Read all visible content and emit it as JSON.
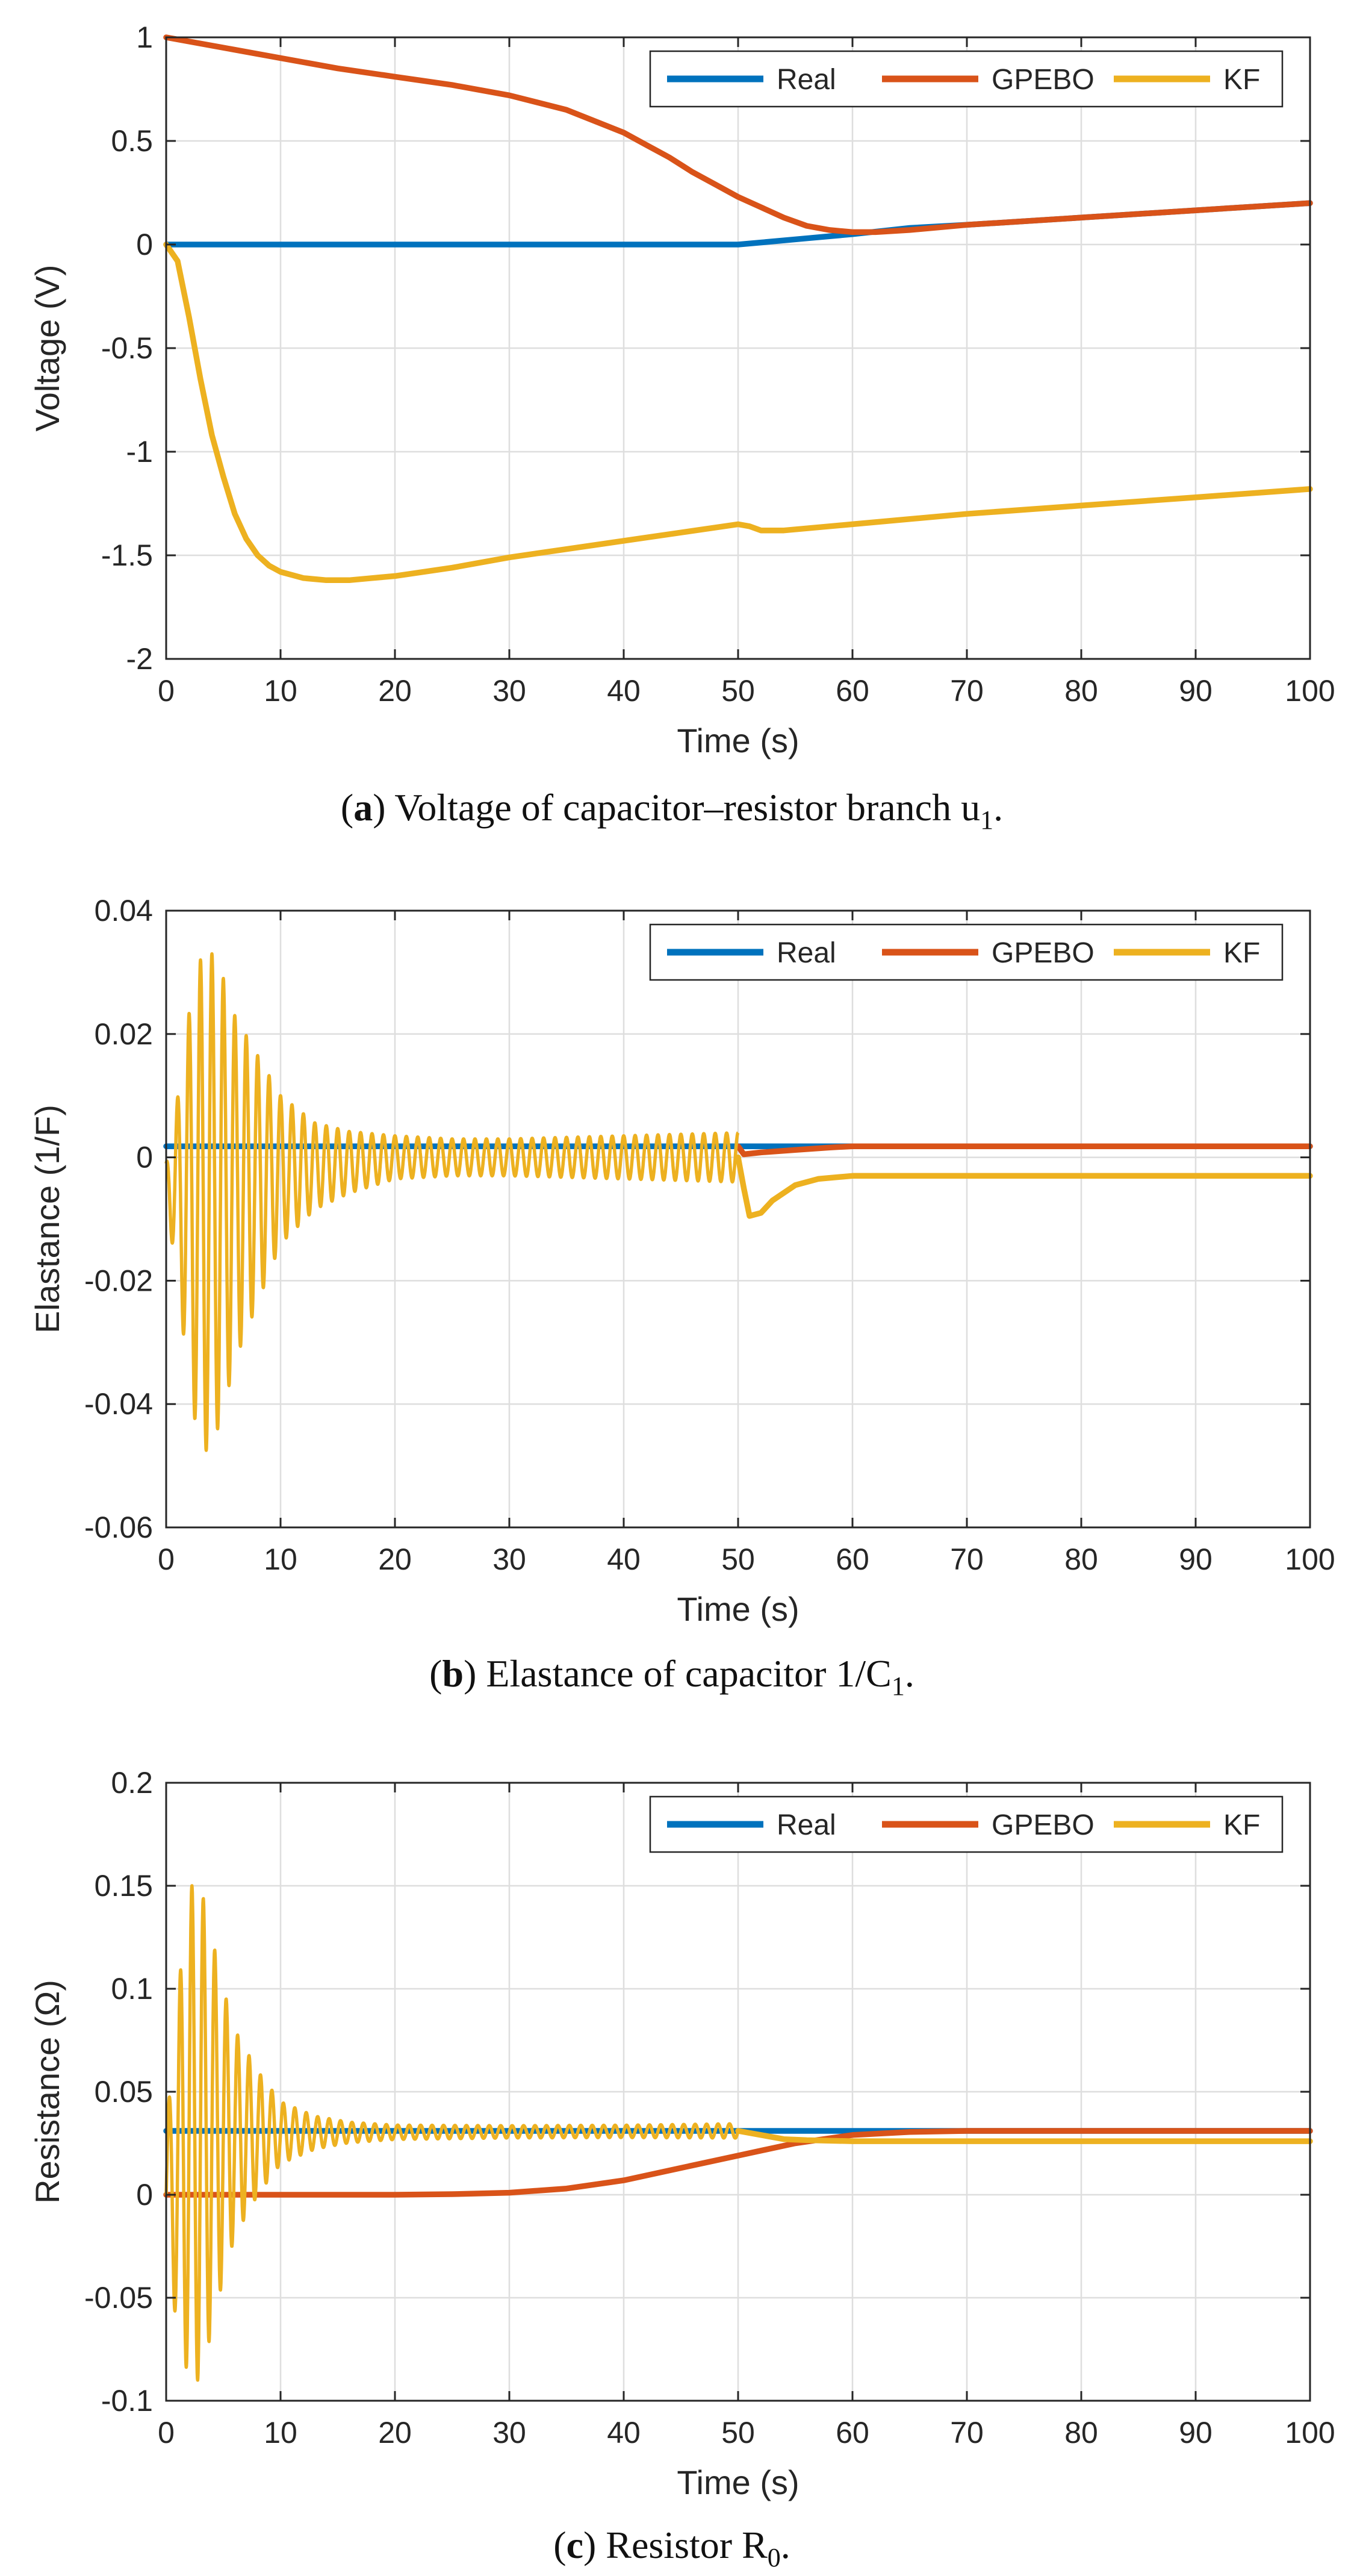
{
  "chart_data": [
    {
      "type": "line",
      "panel": "a",
      "title": "",
      "xlabel": "Time (s)",
      "ylabel": "Voltage (V)",
      "xlim": [
        0,
        100
      ],
      "ylim": [
        -2,
        1
      ],
      "xticks": [
        0,
        10,
        20,
        30,
        40,
        50,
        60,
        70,
        80,
        90,
        100
      ],
      "yticks": [
        -2,
        -1.5,
        -1,
        -0.5,
        0,
        0.5,
        1
      ],
      "ytick_labels": [
        "-2",
        "-1.5",
        "-1",
        "-0.5",
        "0",
        "0.5",
        "1"
      ],
      "grid": true,
      "legend_position": "top-right",
      "caption": {
        "bold": "a",
        "text": "Voltage of capacitor–resistor branch u",
        "subscript": "1",
        "suffix": "."
      },
      "series": [
        {
          "name": "Real",
          "color": "#0072BD",
          "points": [
            [
              0,
              0
            ],
            [
              50,
              0
            ],
            [
              52,
              0.01
            ],
            [
              56,
              0.03
            ],
            [
              60,
              0.05
            ],
            [
              65,
              0.08
            ],
            [
              70,
              0.095
            ],
            [
              80,
              0.13
            ],
            [
              90,
              0.165
            ],
            [
              100,
              0.2
            ]
          ]
        },
        {
          "name": "GPEBO",
          "color": "#D95319",
          "points": [
            [
              0,
              1
            ],
            [
              5,
              0.95
            ],
            [
              10,
              0.9
            ],
            [
              15,
              0.85
            ],
            [
              20,
              0.81
            ],
            [
              25,
              0.77
            ],
            [
              30,
              0.72
            ],
            [
              35,
              0.65
            ],
            [
              40,
              0.54
            ],
            [
              42,
              0.48
            ],
            [
              44,
              0.42
            ],
            [
              46,
              0.35
            ],
            [
              48,
              0.29
            ],
            [
              50,
              0.23
            ],
            [
              52,
              0.18
            ],
            [
              54,
              0.13
            ],
            [
              56,
              0.09
            ],
            [
              58,
              0.07
            ],
            [
              60,
              0.06
            ],
            [
              62,
              0.06
            ],
            [
              65,
              0.07
            ],
            [
              70,
              0.095
            ],
            [
              80,
              0.13
            ],
            [
              90,
              0.165
            ],
            [
              100,
              0.2
            ]
          ]
        },
        {
          "name": "KF",
          "color": "#EDB120",
          "points": [
            [
              0,
              0
            ],
            [
              1,
              -0.08
            ],
            [
              2,
              -0.35
            ],
            [
              3,
              -0.65
            ],
            [
              4,
              -0.92
            ],
            [
              5,
              -1.12
            ],
            [
              6,
              -1.3
            ],
            [
              7,
              -1.42
            ],
            [
              8,
              -1.5
            ],
            [
              9,
              -1.55
            ],
            [
              10,
              -1.58
            ],
            [
              12,
              -1.61
            ],
            [
              14,
              -1.62
            ],
            [
              16,
              -1.62
            ],
            [
              18,
              -1.61
            ],
            [
              20,
              -1.6
            ],
            [
              25,
              -1.56
            ],
            [
              30,
              -1.51
            ],
            [
              35,
              -1.47
            ],
            [
              40,
              -1.43
            ],
            [
              45,
              -1.39
            ],
            [
              50,
              -1.35
            ],
            [
              51,
              -1.36
            ],
            [
              52,
              -1.38
            ],
            [
              54,
              -1.38
            ],
            [
              58,
              -1.36
            ],
            [
              60,
              -1.35
            ],
            [
              70,
              -1.3
            ],
            [
              80,
              -1.26
            ],
            [
              90,
              -1.22
            ],
            [
              100,
              -1.18
            ]
          ]
        }
      ]
    },
    {
      "type": "line",
      "panel": "b",
      "title": "",
      "xlabel": "Time (s)",
      "ylabel": "Elastance (1/F)",
      "xlim": [
        0,
        100
      ],
      "ylim": [
        -0.06,
        0.04
      ],
      "xticks": [
        0,
        10,
        20,
        30,
        40,
        50,
        60,
        70,
        80,
        90,
        100
      ],
      "yticks": [
        -0.06,
        -0.04,
        -0.02,
        0,
        0.02,
        0.04
      ],
      "ytick_labels": [
        "-0.06",
        "-0.04",
        "-0.02",
        "0",
        "0.02",
        "0.04"
      ],
      "grid": true,
      "legend_position": "top-right",
      "caption": {
        "bold": "b",
        "text": "Elastance of capacitor 1/C",
        "subscript": "1",
        "suffix": "."
      },
      "series": [
        {
          "name": "Real",
          "color": "#0072BD",
          "points": [
            [
              0,
              0.0018
            ],
            [
              100,
              0.0018
            ]
          ]
        },
        {
          "name": "GPEBO",
          "color": "#D95319",
          "points": [
            [
              50,
              0.0018
            ],
            [
              50.5,
              0.0005
            ],
            [
              52,
              0.0008
            ],
            [
              55,
              0.0012
            ],
            [
              58,
              0.0016
            ],
            [
              60,
              0.0018
            ],
            [
              100,
              0.0018
            ]
          ]
        },
        {
          "name": "KF",
          "color": "#EDB120",
          "oscillation": {
            "t_end": 50,
            "period": 1.0,
            "phase": 0.25,
            "envelope": [
              [
                0,
                0.003
              ],
              [
                1,
                0.015
              ],
              [
                2,
                0.03
              ],
              [
                3,
                0.04
              ],
              [
                4,
                0.04
              ],
              [
                5,
                0.035
              ],
              [
                6,
                0.028
              ],
              [
                8,
                0.02
              ],
              [
                10,
                0.012
              ],
              [
                13,
                0.007
              ],
              [
                16,
                0.005
              ],
              [
                20,
                0.0035
              ],
              [
                25,
                0.003
              ],
              [
                30,
                0.003
              ],
              [
                40,
                0.0035
              ],
              [
                50,
                0.004
              ]
            ],
            "center": [
              [
                0,
                -0.004
              ],
              [
                3,
                -0.008
              ],
              [
                6,
                -0.005
              ],
              [
                10,
                -0.002
              ],
              [
                20,
                0.0
              ],
              [
                50,
                0.0
              ]
            ]
          },
          "points": [
            [
              50,
              0.0
            ],
            [
              50.5,
              -0.005
            ],
            [
              51,
              -0.0095
            ],
            [
              52,
              -0.009
            ],
            [
              53,
              -0.007
            ],
            [
              55,
              -0.0045
            ],
            [
              57,
              -0.0035
            ],
            [
              60,
              -0.003
            ],
            [
              100,
              -0.003
            ]
          ]
        }
      ]
    },
    {
      "type": "line",
      "panel": "c",
      "title": "",
      "xlabel": "Time (s)",
      "ylabel": "Resistance (Ω)",
      "xlim": [
        0,
        100
      ],
      "ylim": [
        -0.1,
        0.2
      ],
      "xticks": [
        0,
        10,
        20,
        30,
        40,
        50,
        60,
        70,
        80,
        90,
        100
      ],
      "yticks": [
        -0.1,
        -0.05,
        0,
        0.05,
        0.1,
        0.15,
        0.2
      ],
      "ytick_labels": [
        "-0.1",
        "-0.05",
        "0",
        "0.05",
        "0.1",
        "0.15",
        "0.2"
      ],
      "grid": true,
      "legend_position": "top-right",
      "caption": {
        "bold": "c",
        "text": "Resistor R",
        "subscript": "0",
        "suffix": "."
      },
      "series": [
        {
          "name": "Real",
          "color": "#0072BD",
          "points": [
            [
              0,
              0.031
            ],
            [
              100,
              0.031
            ]
          ]
        },
        {
          "name": "GPEBO",
          "color": "#D95319",
          "points": [
            [
              0,
              0
            ],
            [
              20,
              0
            ],
            [
              25,
              0.0003
            ],
            [
              30,
              0.001
            ],
            [
              35,
              0.003
            ],
            [
              40,
              0.007
            ],
            [
              45,
              0.013
            ],
            [
              50,
              0.019
            ],
            [
              55,
              0.025
            ],
            [
              60,
              0.029
            ],
            [
              65,
              0.0305
            ],
            [
              70,
              0.031
            ],
            [
              100,
              0.031
            ]
          ]
        },
        {
          "name": "KF",
          "color": "#EDB120",
          "oscillation": {
            "t_end": 50,
            "period": 1.0,
            "phase": 0.0,
            "envelope": [
              [
                0,
                0.03
              ],
              [
                1,
                0.08
              ],
              [
                2,
                0.12
              ],
              [
                3,
                0.12
              ],
              [
                4,
                0.095
              ],
              [
                5,
                0.07
              ],
              [
                6,
                0.05
              ],
              [
                8,
                0.03
              ],
              [
                10,
                0.015
              ],
              [
                13,
                0.008
              ],
              [
                16,
                0.005
              ],
              [
                20,
                0.0035
              ],
              [
                30,
                0.003
              ],
              [
                40,
                0.003
              ],
              [
                50,
                0.0035
              ]
            ],
            "center": [
              [
                0,
                0.0
              ],
              [
                2,
                0.03
              ],
              [
                5,
                0.03
              ],
              [
                50,
                0.031
              ]
            ]
          },
          "points": [
            [
              50,
              0.031
            ],
            [
              52,
              0.029
            ],
            [
              54,
              0.027
            ],
            [
              56,
              0.0265
            ],
            [
              60,
              0.026
            ],
            [
              100,
              0.026
            ]
          ]
        }
      ]
    }
  ]
}
